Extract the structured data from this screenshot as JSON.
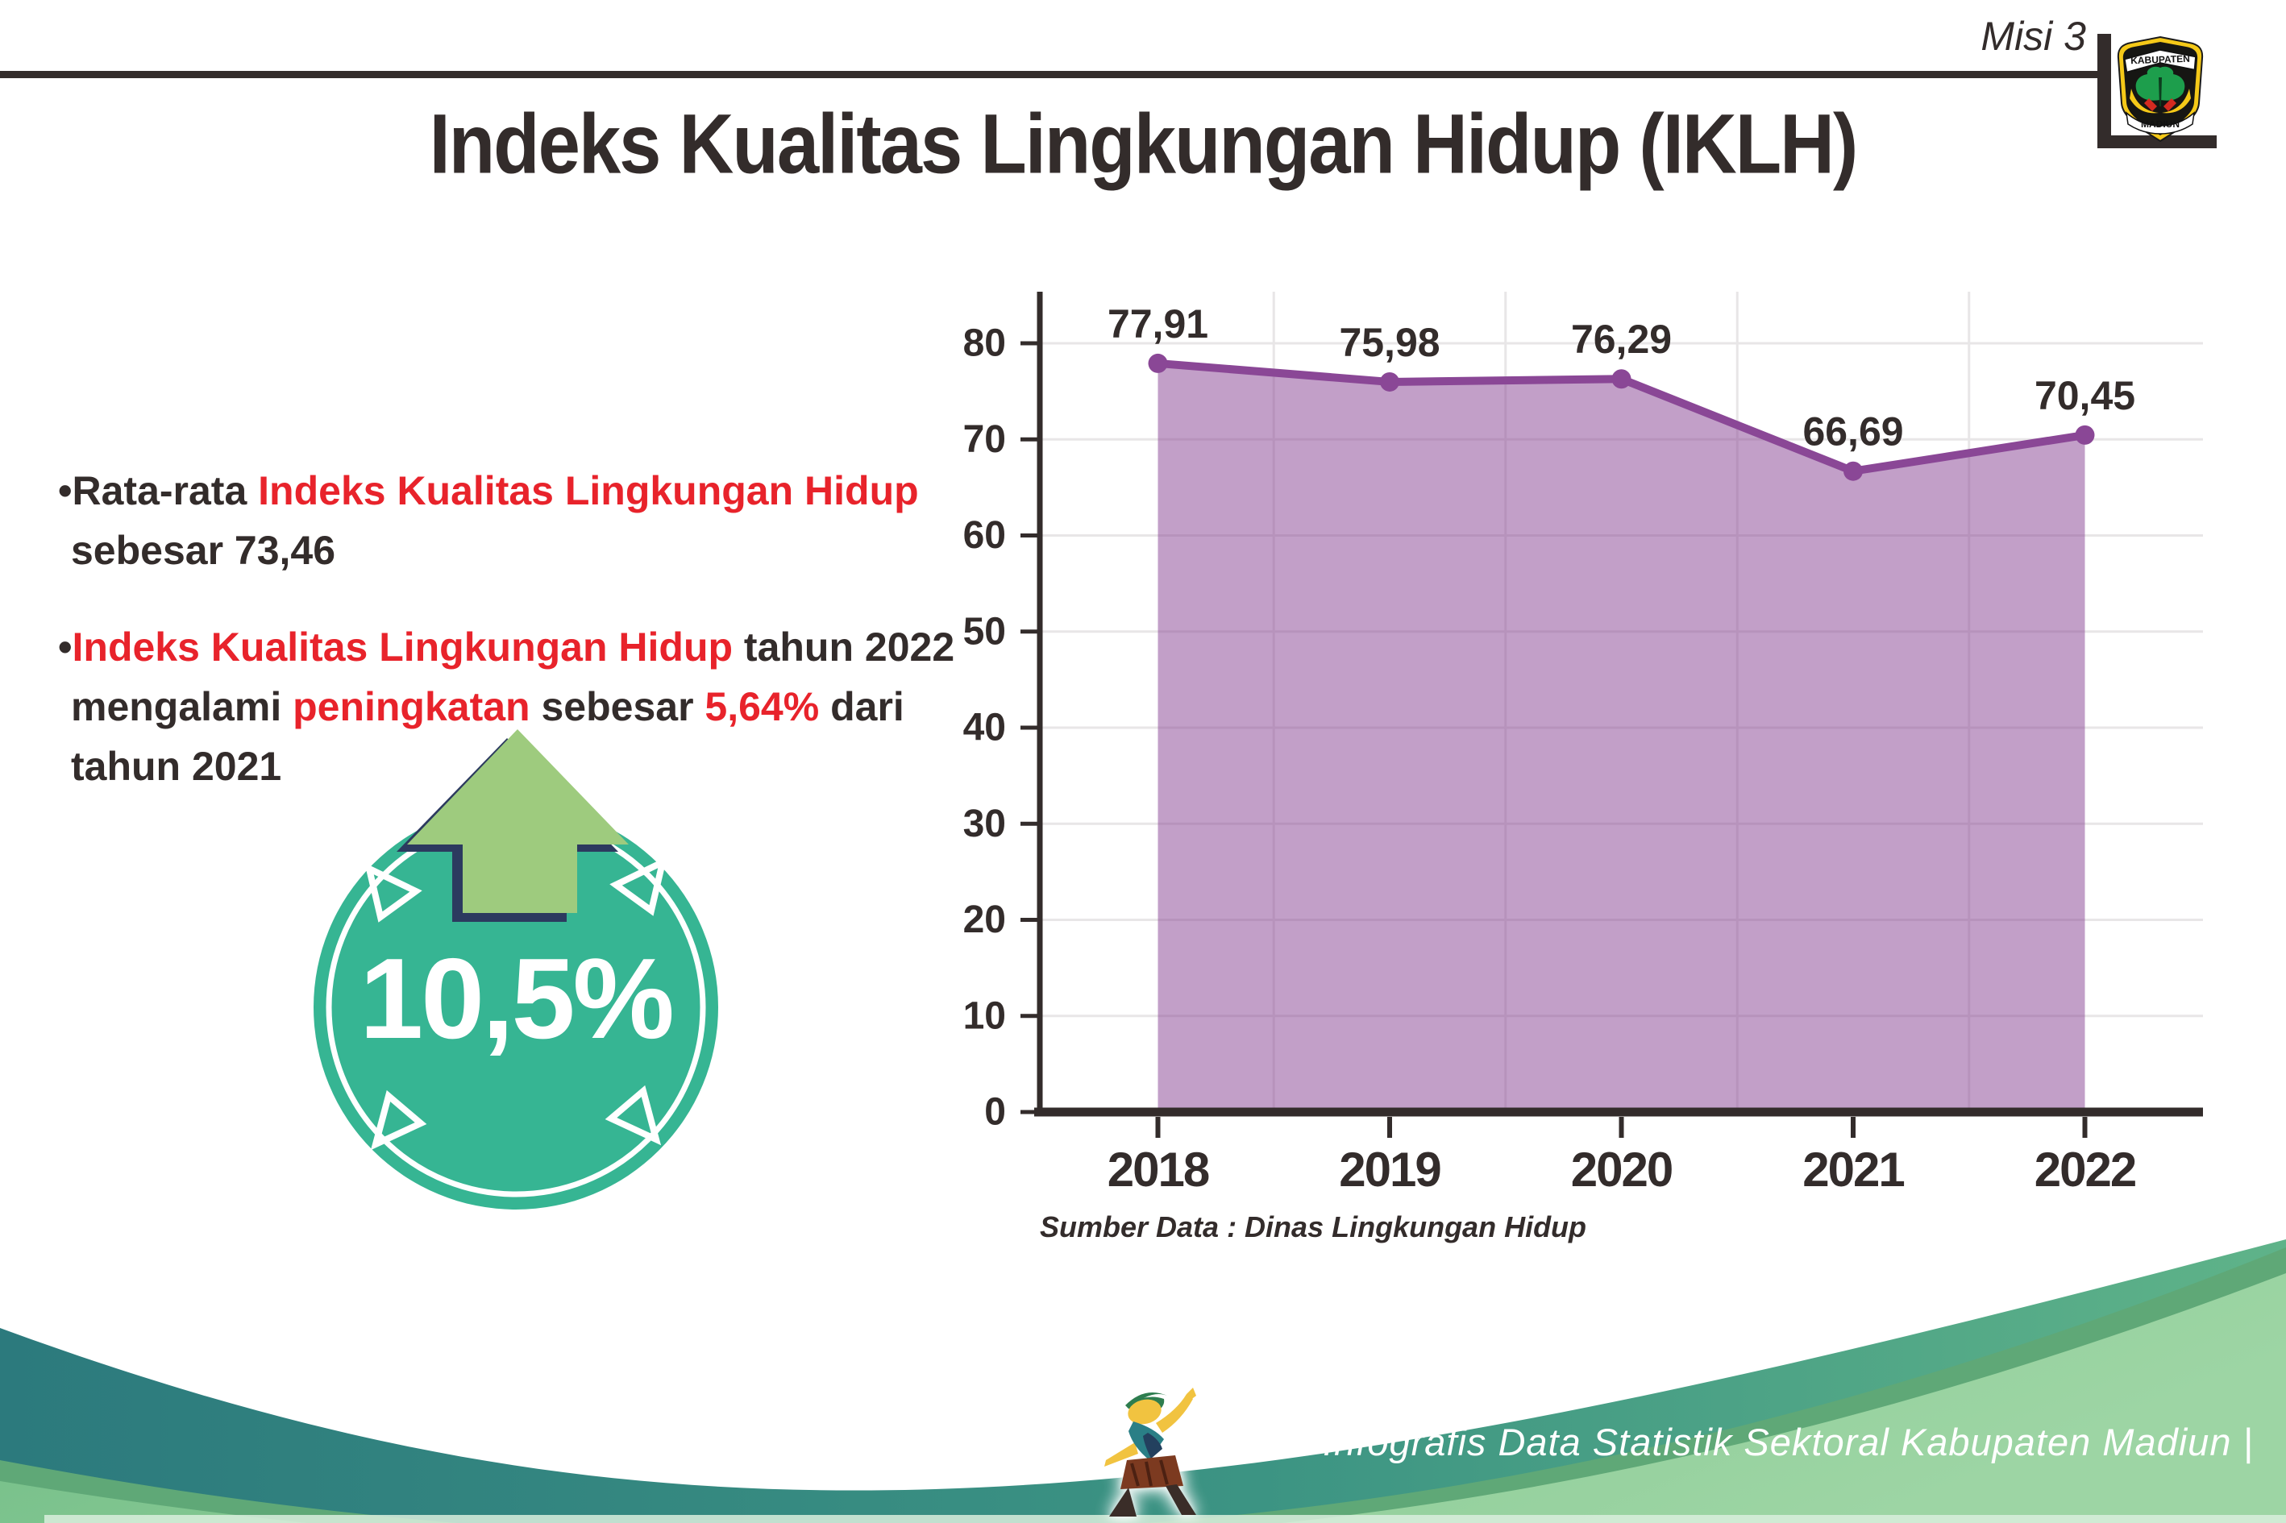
{
  "header": {
    "misi_label": "Misi 3",
    "logo": {
      "top_text": "KABUPATEN",
      "bottom_text": "MADIUN"
    }
  },
  "title": "Indeks Kualitas Lingkungan Hidup (IKLH)",
  "bullets": {
    "marker": "•",
    "b1": {
      "s1": "Rata-rata ",
      "s2": "Indeks Kualitas Lingkungan Hidup",
      "s3": "sebesar 73,46"
    },
    "b2": {
      "s1": "Indeks Kualitas Lingkungan Hidup",
      "s2": " tahun 2022",
      "s3": "mengalami ",
      "s4": "peningkatan",
      "s5": " sebesar ",
      "s6": "5,64%",
      "s7": " dari",
      "s8": "tahun 2021"
    }
  },
  "badge": {
    "value": "10,5%"
  },
  "chart_data": {
    "type": "area",
    "categories": [
      "2018",
      "2019",
      "2020",
      "2021",
      "2022"
    ],
    "values": [
      77.91,
      75.98,
      76.29,
      66.69,
      70.45
    ],
    "value_labels": [
      "77,91",
      "75,98",
      "76,29",
      "66,69",
      "70,45"
    ],
    "title": "",
    "xlabel": "",
    "ylabel": "",
    "ylim": [
      0,
      80
    ],
    "ytick_step": 10,
    "grid": true,
    "legend": "none",
    "line_color": "#8a4796",
    "fill_color": "rgba(138,71,150,0.52)",
    "axis_color": "#332c2b",
    "grid_color": "#e8e6e7"
  },
  "source_note": "Sumber Data : Dinas Lingkungan Hidup",
  "footer": {
    "caption": "Media Infografis Data Statistik Sektoral Kabupaten Madiun |"
  },
  "colors": {
    "dark": "#332c2b",
    "red": "#e8232b",
    "badge_teal": "#36b593",
    "arrow_green": "#9ecb7e",
    "arrow_outline": "#2c3a5f",
    "purple_line": "#8a4796",
    "wave_teal_dark": "#2c7a7d",
    "wave_teal_light": "#45a080",
    "wave_rim": "#5fa877",
    "wave_green_light": "#9dd5a4",
    "wave_green": "#76bf8a"
  }
}
